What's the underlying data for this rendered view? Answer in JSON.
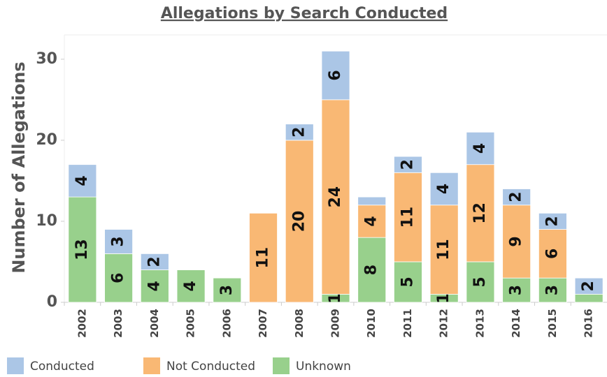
{
  "chart_data": {
    "type": "bar",
    "stacked": true,
    "title": "Allegations by Search Conducted",
    "y_label": "Number of Allegations",
    "categories": [
      "2002",
      "2003",
      "2004",
      "2005",
      "2006",
      "2007",
      "2008",
      "2009",
      "2010",
      "2011",
      "2012",
      "2013",
      "2014",
      "2015",
      "2016"
    ],
    "series": [
      {
        "name": "Unknown",
        "color": "#98d08c",
        "values": [
          13,
          6,
          4,
          4,
          3,
          0,
          0,
          1,
          8,
          5,
          1,
          5,
          3,
          3,
          1
        ],
        "value_labels": [
          "13",
          "6",
          "4",
          "4",
          "3",
          null,
          null,
          "1",
          "8",
          "5",
          "1",
          "5",
          "3",
          "3",
          null
        ]
      },
      {
        "name": "Not Conducted",
        "color": "#f9b874",
        "values": [
          0,
          0,
          0,
          0,
          0,
          11,
          20,
          24,
          4,
          11,
          11,
          12,
          9,
          6,
          0
        ],
        "value_labels": [
          null,
          null,
          null,
          null,
          null,
          "11",
          "20",
          "24",
          "4",
          "11",
          "11",
          "12",
          "9",
          "6",
          null
        ]
      },
      {
        "name": "Conducted",
        "color": "#abc6e6",
        "values": [
          4,
          3,
          2,
          0,
          0,
          0,
          2,
          6,
          1,
          2,
          4,
          4,
          2,
          2,
          2
        ],
        "value_labels": [
          "4",
          "3",
          "2",
          null,
          null,
          null,
          "2",
          "6",
          null,
          "2",
          "4",
          "4",
          "2",
          "2",
          "2"
        ]
      }
    ],
    "legend_order": [
      2,
      1,
      0
    ],
    "ylim": [
      0,
      33
    ],
    "yticks": [
      0,
      10,
      20,
      30
    ],
    "grid": false
  }
}
